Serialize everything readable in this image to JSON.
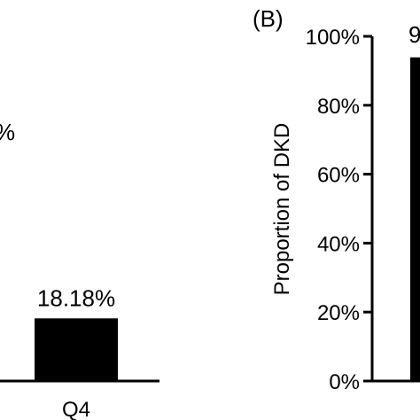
{
  "chart_data": [
    {
      "type": "bar",
      "categories": [
        "Q4"
      ],
      "values": [
        18.18
      ],
      "data_labels": [
        "18.18%"
      ],
      "partial_label": "%",
      "ylim": [
        0,
        100
      ],
      "grid": false
    },
    {
      "type": "bar",
      "panel_label": "(B)",
      "ylabel": "Proportion of DKD",
      "yticks": [
        "0%",
        "20%",
        "40%",
        "60%",
        "80%",
        "100%"
      ],
      "ytick_values": [
        0,
        20,
        40,
        60,
        80,
        100
      ],
      "values": [
        93.9
      ],
      "data_label_partial": "9",
      "ylim": [
        0,
        100
      ],
      "grid": false
    }
  ],
  "colors": {
    "bar": "#000000",
    "axis": "#000000",
    "background": "#ffffff"
  }
}
